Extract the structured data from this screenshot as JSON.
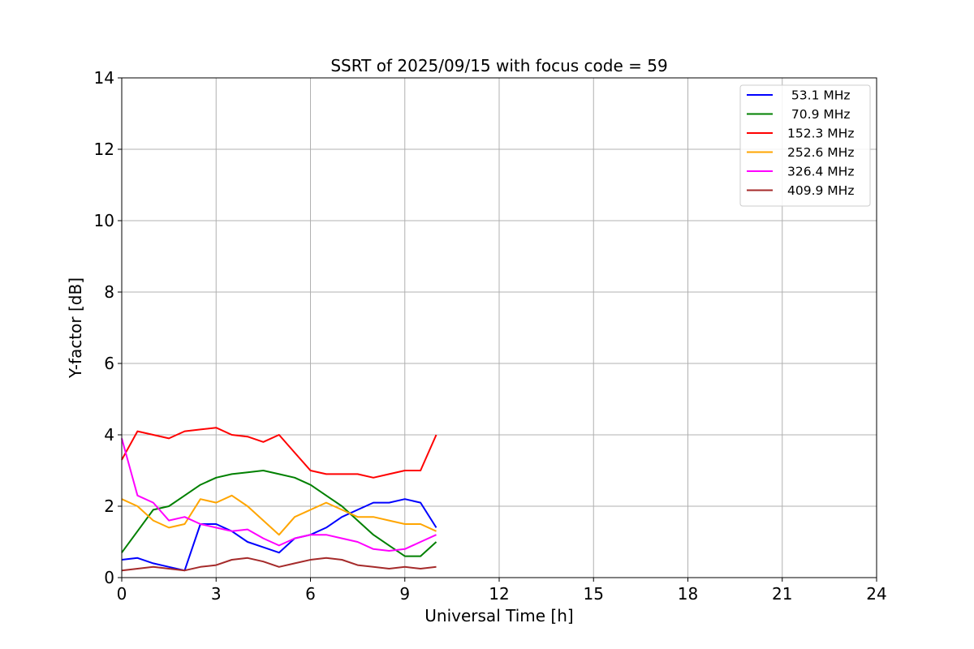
{
  "chart_data": {
    "type": "line",
    "title": "SSRT of 2025/09/15 with focus code = 59",
    "xlabel": "Universal Time [h]",
    "ylabel": "Y-factor [dB]",
    "xlim": [
      0,
      24
    ],
    "ylim": [
      0,
      14
    ],
    "xticks": [
      0,
      3,
      6,
      9,
      12,
      15,
      18,
      21,
      24
    ],
    "yticks": [
      0,
      2,
      4,
      6,
      8,
      10,
      12,
      14
    ],
    "grid": true,
    "legend_position": "top-right",
    "series": [
      {
        "name": " 53.1 MHz",
        "color": "#0000ff",
        "x": [
          0,
          0.5,
          1,
          1.5,
          2,
          2.5,
          3,
          3.5,
          4,
          4.5,
          5,
          5.5,
          6,
          6.5,
          7,
          7.5,
          8,
          8.5,
          9,
          9.5,
          10
        ],
        "y": [
          0.5,
          0.55,
          0.4,
          0.3,
          0.2,
          1.5,
          1.5,
          1.3,
          1.0,
          0.85,
          0.7,
          1.1,
          1.2,
          1.4,
          1.7,
          1.9,
          2.1,
          2.1,
          2.2,
          2.1,
          1.4
        ]
      },
      {
        "name": " 70.9 MHz",
        "color": "#008000",
        "x": [
          0,
          0.5,
          1,
          1.5,
          2,
          2.5,
          3,
          3.5,
          4,
          4.5,
          5,
          5.5,
          6,
          6.5,
          7,
          7.5,
          8,
          8.5,
          9,
          9.5,
          10
        ],
        "y": [
          0.7,
          1.3,
          1.9,
          2.0,
          2.3,
          2.6,
          2.8,
          2.9,
          2.95,
          3.0,
          2.9,
          2.8,
          2.6,
          2.3,
          2.0,
          1.6,
          1.2,
          0.9,
          0.6,
          0.6,
          1.0
        ]
      },
      {
        "name": "152.3 MHz",
        "color": "#ff0000",
        "x": [
          0,
          0.5,
          1,
          1.5,
          2,
          2.5,
          3,
          3.5,
          4,
          4.5,
          5,
          5.5,
          6,
          6.5,
          7,
          7.5,
          8,
          8.5,
          9,
          9.5,
          10
        ],
        "y": [
          3.3,
          4.1,
          4.0,
          3.9,
          4.1,
          4.15,
          4.2,
          4.0,
          3.95,
          3.8,
          4.0,
          3.5,
          3.0,
          2.9,
          2.9,
          2.9,
          2.8,
          2.9,
          3.0,
          3.0,
          4.0
        ]
      },
      {
        "name": "252.6 MHz",
        "color": "#ffa500",
        "x": [
          0,
          0.5,
          1,
          1.5,
          2,
          2.5,
          3,
          3.5,
          4,
          4.5,
          5,
          5.5,
          6,
          6.5,
          7,
          7.5,
          8,
          8.5,
          9,
          9.5,
          10
        ],
        "y": [
          2.2,
          2.0,
          1.6,
          1.4,
          1.5,
          2.2,
          2.1,
          2.3,
          2.0,
          1.6,
          1.2,
          1.7,
          1.9,
          2.1,
          1.9,
          1.7,
          1.7,
          1.6,
          1.5,
          1.5,
          1.3
        ]
      },
      {
        "name": "326.4 MHz",
        "color": "#ff00ff",
        "x": [
          0,
          0.5,
          1,
          1.5,
          2,
          2.5,
          3,
          3.5,
          4,
          4.5,
          5,
          5.5,
          6,
          6.5,
          7,
          7.5,
          8,
          8.5,
          9,
          9.5,
          10
        ],
        "y": [
          3.9,
          2.3,
          2.1,
          1.6,
          1.7,
          1.5,
          1.4,
          1.3,
          1.35,
          1.1,
          0.9,
          1.1,
          1.2,
          1.2,
          1.1,
          1.0,
          0.8,
          0.75,
          0.8,
          1.0,
          1.2
        ]
      },
      {
        "name": "409.9 MHz",
        "color": "#a52a2a",
        "x": [
          0,
          0.5,
          1,
          1.5,
          2,
          2.5,
          3,
          3.5,
          4,
          4.5,
          5,
          5.5,
          6,
          6.5,
          7,
          7.5,
          8,
          8.5,
          9,
          9.5,
          10
        ],
        "y": [
          0.2,
          0.25,
          0.3,
          0.25,
          0.2,
          0.3,
          0.35,
          0.5,
          0.55,
          0.45,
          0.3,
          0.4,
          0.5,
          0.55,
          0.5,
          0.35,
          0.3,
          0.25,
          0.3,
          0.25,
          0.3
        ]
      }
    ]
  }
}
